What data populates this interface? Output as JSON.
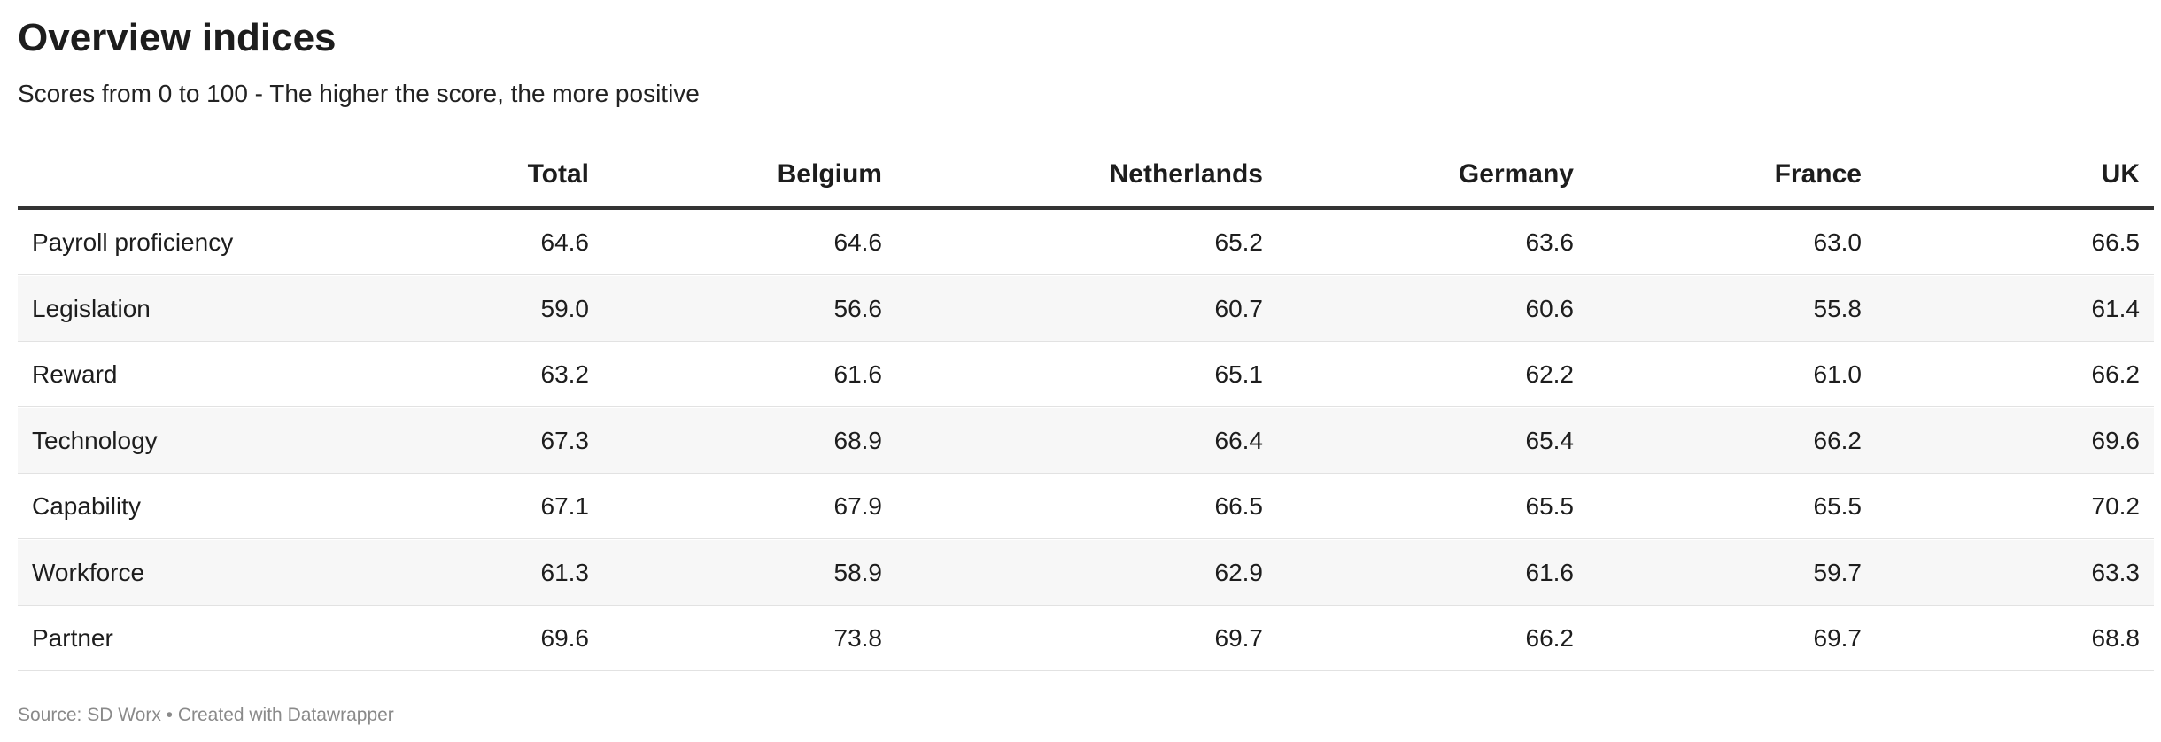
{
  "header": {
    "title": "Overview indices",
    "subtitle": "Scores from 0 to 100 - The higher the score, the more positive"
  },
  "table": {
    "columns": [
      "Total",
      "Belgium",
      "Netherlands",
      "Germany",
      "France",
      "UK"
    ],
    "rows": [
      {
        "label": "Payroll proficiency",
        "values": [
          "64.6",
          "64.6",
          "65.2",
          "63.6",
          "63.0",
          "66.5"
        ]
      },
      {
        "label": "Legislation",
        "values": [
          "59.0",
          "56.6",
          "60.7",
          "60.6",
          "55.8",
          "61.4"
        ]
      },
      {
        "label": "Reward",
        "values": [
          "63.2",
          "61.6",
          "65.1",
          "62.2",
          "61.0",
          "66.2"
        ]
      },
      {
        "label": "Technology",
        "values": [
          "67.3",
          "68.9",
          "66.4",
          "65.4",
          "66.2",
          "69.6"
        ]
      },
      {
        "label": "Capability",
        "values": [
          "67.1",
          "67.9",
          "66.5",
          "65.5",
          "65.5",
          "70.2"
        ]
      },
      {
        "label": "Workforce",
        "values": [
          "61.3",
          "58.9",
          "62.9",
          "61.6",
          "59.7",
          "63.3"
        ]
      },
      {
        "label": "Partner",
        "values": [
          "69.6",
          "73.8",
          "69.7",
          "66.2",
          "69.7",
          "68.8"
        ]
      }
    ]
  },
  "footer": {
    "source": "Source: SD Worx • Created with Datawrapper"
  }
}
